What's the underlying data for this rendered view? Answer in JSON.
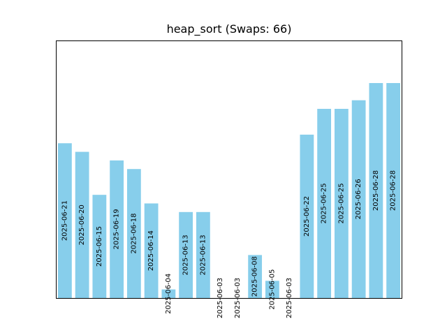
{
  "chart_data": {
    "type": "bar",
    "title": "heap_sort (Swaps: 66)",
    "xlabel": "",
    "ylabel": "",
    "ylim": [
      0,
      25
    ],
    "axis_ticks": "none",
    "grid": false,
    "legend": "none",
    "bar_color": "#87ceeb",
    "categories": [
      "2025-06-21",
      "2025-06-20",
      "2025-06-15",
      "2025-06-19",
      "2025-06-18",
      "2025-06-14",
      "2025-06-04",
      "2025-06-13",
      "2025-06-13",
      "2025-06-03",
      "2025-06-03",
      "2025-06-08",
      "2025-06-05",
      "2025-06-03",
      "2025-06-22",
      "2025-06-25",
      "2025-06-25",
      "2025-06-26",
      "2025-06-28",
      "2025-06-28"
    ],
    "values": [
      18,
      17,
      12,
      16,
      15,
      11,
      1,
      10,
      10,
      0,
      0,
      5,
      2,
      0,
      19,
      22,
      22,
      23,
      25,
      25
    ]
  }
}
